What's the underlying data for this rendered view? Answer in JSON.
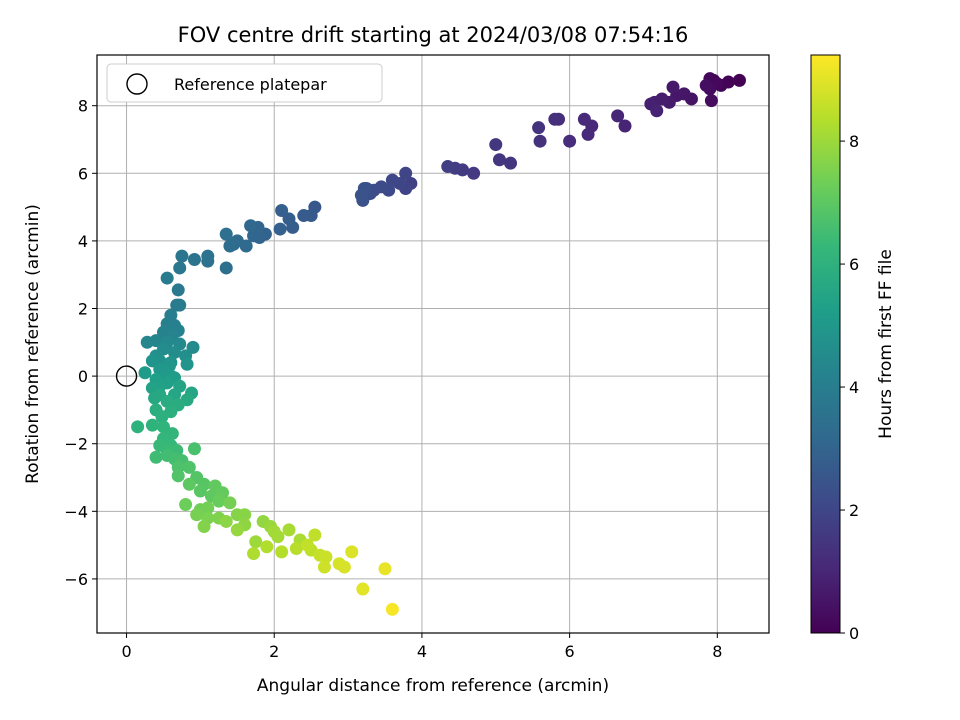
{
  "chart_data": {
    "type": "scatter",
    "title": "FOV centre drift starting at 2024/03/08 07:54:16",
    "xlabel": "Angular distance from reference (arcmin)",
    "ylabel": "Rotation from reference (arcmin)",
    "xlim": [
      -0.4,
      8.7
    ],
    "ylim": [
      -7.6,
      9.5
    ],
    "xticks": [
      0,
      2,
      4,
      6,
      8
    ],
    "yticks": [
      -6,
      -4,
      -2,
      0,
      2,
      4,
      6,
      8
    ],
    "grid": true,
    "legend": {
      "position": "top-left",
      "entries": [
        "Reference platepar"
      ]
    },
    "reference_point": {
      "x": 0,
      "y": 0,
      "label": "Reference platepar"
    },
    "colorbar": {
      "label": "Hours from first FF file",
      "range": [
        0,
        9.4
      ],
      "ticks": [
        0,
        2,
        4,
        6,
        8
      ],
      "colormap": "viridis",
      "colors": [
        "#440154",
        "#482878",
        "#3e4989",
        "#31688e",
        "#26828e",
        "#1f9e89",
        "#35b779",
        "#6ece58",
        "#b5de2b",
        "#fde725"
      ]
    },
    "series": [
      {
        "points": [
          [
            8.3,
            8.75,
            0.0
          ],
          [
            8.15,
            8.7,
            0.05
          ],
          [
            8.05,
            8.6,
            0.1
          ],
          [
            7.95,
            8.75,
            0.12
          ],
          [
            7.9,
            8.8,
            0.15
          ],
          [
            8.0,
            8.65,
            0.2
          ],
          [
            7.9,
            8.5,
            0.25
          ],
          [
            7.92,
            8.15,
            0.3
          ],
          [
            7.85,
            8.6,
            0.35
          ],
          [
            7.65,
            8.2,
            0.5
          ],
          [
            7.55,
            8.35,
            0.55
          ],
          [
            7.45,
            8.3,
            0.6
          ],
          [
            7.4,
            8.55,
            0.65
          ],
          [
            7.35,
            8.1,
            0.7
          ],
          [
            7.25,
            8.2,
            0.75
          ],
          [
            7.15,
            8.1,
            0.8
          ],
          [
            7.1,
            8.05,
            0.85
          ],
          [
            7.18,
            7.85,
            0.9
          ],
          [
            6.75,
            7.4,
            0.95
          ],
          [
            6.65,
            7.7,
            1.0
          ],
          [
            6.3,
            7.4,
            1.05
          ],
          [
            6.25,
            7.15,
            1.1
          ],
          [
            6.2,
            7.6,
            1.15
          ],
          [
            6.0,
            6.95,
            1.2
          ],
          [
            5.85,
            7.6,
            1.25
          ],
          [
            5.8,
            7.6,
            1.3
          ],
          [
            5.6,
            6.95,
            1.35
          ],
          [
            5.58,
            7.35,
            1.4
          ],
          [
            5.2,
            6.3,
            1.45
          ],
          [
            5.05,
            6.4,
            1.5
          ],
          [
            5.0,
            6.85,
            1.55
          ],
          [
            4.7,
            6.0,
            1.6
          ],
          [
            4.55,
            6.1,
            1.65
          ],
          [
            4.45,
            6.15,
            1.7
          ],
          [
            4.35,
            6.2,
            1.75
          ],
          [
            3.85,
            5.7,
            1.85
          ],
          [
            3.78,
            5.55,
            1.9
          ],
          [
            3.78,
            6.0,
            1.95
          ],
          [
            3.7,
            5.7,
            2.0
          ],
          [
            3.6,
            5.8,
            2.05
          ],
          [
            3.55,
            5.5,
            2.1
          ],
          [
            3.45,
            5.6,
            2.15
          ],
          [
            3.35,
            5.5,
            2.2
          ],
          [
            3.3,
            5.4,
            2.25
          ],
          [
            3.25,
            5.55,
            2.3
          ],
          [
            3.2,
            5.2,
            2.35
          ],
          [
            3.22,
            5.55,
            2.4
          ],
          [
            3.18,
            5.35,
            2.45
          ],
          [
            2.55,
            5.0,
            2.6
          ],
          [
            2.5,
            4.75,
            2.65
          ],
          [
            2.4,
            4.75,
            2.7
          ],
          [
            2.25,
            4.4,
            2.75
          ],
          [
            2.2,
            4.65,
            2.8
          ],
          [
            2.1,
            4.9,
            2.85
          ],
          [
            2.08,
            4.35,
            2.9
          ],
          [
            1.88,
            4.2,
            2.95
          ],
          [
            1.8,
            4.1,
            3.0
          ],
          [
            1.78,
            4.4,
            3.05
          ],
          [
            1.72,
            4.15,
            3.1
          ],
          [
            1.68,
            4.45,
            3.15
          ],
          [
            1.62,
            3.85,
            3.2
          ],
          [
            1.5,
            4.0,
            3.25
          ],
          [
            1.45,
            3.9,
            3.3
          ],
          [
            1.4,
            3.85,
            3.35
          ],
          [
            1.35,
            3.2,
            3.4
          ],
          [
            1.35,
            4.2,
            3.45
          ],
          [
            1.1,
            3.4,
            3.5
          ],
          [
            1.1,
            3.55,
            3.55
          ],
          [
            0.92,
            3.45,
            3.6
          ],
          [
            0.75,
            3.55,
            3.7
          ],
          [
            0.72,
            3.2,
            3.75
          ],
          [
            0.7,
            2.55,
            3.8
          ],
          [
            0.68,
            2.1,
            3.85
          ],
          [
            0.55,
            2.9,
            3.9
          ],
          [
            0.72,
            2.1,
            3.95
          ],
          [
            0.6,
            1.8,
            4.0
          ],
          [
            0.55,
            1.55,
            4.05
          ],
          [
            0.65,
            1.5,
            4.1
          ],
          [
            0.7,
            1.35,
            4.15
          ],
          [
            0.5,
            1.3,
            4.2
          ],
          [
            0.62,
            1.2,
            4.25
          ],
          [
            0.4,
            1.05,
            4.3
          ],
          [
            0.28,
            1.0,
            4.35
          ],
          [
            0.55,
            1.0,
            4.4
          ],
          [
            0.72,
            0.95,
            4.45
          ],
          [
            0.9,
            0.85,
            4.5
          ],
          [
            0.5,
            0.8,
            4.55
          ],
          [
            0.65,
            0.7,
            4.6
          ],
          [
            0.8,
            0.6,
            4.65
          ],
          [
            0.4,
            0.6,
            4.7
          ],
          [
            0.45,
            0.45,
            4.75
          ],
          [
            0.6,
            0.4,
            4.8
          ],
          [
            0.35,
            0.45,
            4.85
          ],
          [
            0.82,
            0.35,
            4.9
          ],
          [
            0.58,
            0.3,
            4.95
          ],
          [
            0.45,
            0.2,
            5.0
          ],
          [
            0.5,
            0.1,
            5.05
          ],
          [
            0.6,
            0.0,
            5.1
          ],
          [
            0.25,
            0.1,
            5.15
          ],
          [
            0.65,
            -0.05,
            5.2
          ],
          [
            0.4,
            -0.1,
            5.25
          ],
          [
            0.55,
            -0.2,
            5.3
          ],
          [
            0.45,
            -0.3,
            5.35
          ],
          [
            0.35,
            -0.35,
            5.4
          ],
          [
            0.72,
            -0.3,
            5.45
          ],
          [
            0.88,
            -0.5,
            5.5
          ],
          [
            0.65,
            -0.55,
            5.55
          ],
          [
            0.45,
            -0.55,
            5.6
          ],
          [
            0.38,
            -0.65,
            5.65
          ],
          [
            0.82,
            -0.7,
            5.7
          ],
          [
            0.55,
            -0.75,
            5.75
          ],
          [
            0.7,
            -0.85,
            5.8
          ],
          [
            0.4,
            -1.0,
            5.85
          ],
          [
            0.6,
            -1.05,
            5.9
          ],
          [
            0.48,
            -1.2,
            5.95
          ],
          [
            0.15,
            -1.5,
            6.0
          ],
          [
            0.35,
            -1.45,
            6.05
          ],
          [
            0.5,
            -1.5,
            6.1
          ],
          [
            0.62,
            -1.7,
            6.15
          ],
          [
            0.5,
            -1.85,
            6.2
          ],
          [
            0.6,
            -2.05,
            6.25
          ],
          [
            0.45,
            -2.05,
            6.3
          ],
          [
            0.55,
            -2.2,
            6.35
          ],
          [
            0.68,
            -2.2,
            6.4
          ],
          [
            0.4,
            -2.4,
            6.45
          ],
          [
            0.55,
            -2.35,
            6.5
          ],
          [
            0.65,
            -2.45,
            6.55
          ],
          [
            0.75,
            -2.5,
            6.6
          ],
          [
            0.92,
            -2.15,
            6.65
          ],
          [
            0.7,
            -2.7,
            6.7
          ],
          [
            0.85,
            -2.7,
            6.75
          ],
          [
            0.7,
            -2.95,
            6.8
          ],
          [
            0.95,
            -3.0,
            6.85
          ],
          [
            1.05,
            -3.2,
            6.9
          ],
          [
            1.0,
            -3.4,
            6.95
          ],
          [
            0.85,
            -3.2,
            7.0
          ],
          [
            1.15,
            -3.55,
            7.05
          ],
          [
            1.2,
            -3.25,
            7.1
          ],
          [
            1.3,
            -3.45,
            7.15
          ],
          [
            1.25,
            -3.7,
            7.2
          ],
          [
            0.8,
            -3.8,
            7.25
          ],
          [
            1.0,
            -3.95,
            7.3
          ],
          [
            1.1,
            -3.9,
            7.35
          ],
          [
            1.4,
            -3.75,
            7.4
          ],
          [
            0.95,
            -4.1,
            7.45
          ],
          [
            1.1,
            -4.2,
            7.5
          ],
          [
            1.25,
            -4.2,
            7.55
          ],
          [
            1.05,
            -4.45,
            7.6
          ],
          [
            1.5,
            -4.1,
            7.65
          ],
          [
            1.6,
            -4.1,
            7.7
          ],
          [
            1.35,
            -4.3,
            7.75
          ],
          [
            1.6,
            -4.4,
            7.8
          ],
          [
            1.85,
            -4.3,
            7.85
          ],
          [
            1.5,
            -4.55,
            7.9
          ],
          [
            1.95,
            -4.45,
            7.95
          ],
          [
            1.75,
            -4.9,
            8.0
          ],
          [
            2.0,
            -4.6,
            8.05
          ],
          [
            2.05,
            -4.75,
            8.1
          ],
          [
            2.2,
            -4.55,
            8.15
          ],
          [
            2.35,
            -4.85,
            8.2
          ],
          [
            1.72,
            -5.25,
            8.25
          ],
          [
            1.9,
            -5.05,
            8.3
          ],
          [
            2.1,
            -5.2,
            8.35
          ],
          [
            2.3,
            -5.1,
            8.4
          ],
          [
            2.5,
            -5.15,
            8.45
          ],
          [
            2.55,
            -4.7,
            8.5
          ],
          [
            2.45,
            -5.0,
            8.55
          ],
          [
            2.62,
            -5.3,
            8.6
          ],
          [
            2.7,
            -5.35,
            8.65
          ],
          [
            2.68,
            -5.65,
            8.7
          ],
          [
            2.88,
            -5.55,
            8.8
          ],
          [
            2.95,
            -5.65,
            8.85
          ],
          [
            3.05,
            -5.2,
            8.9
          ],
          [
            3.2,
            -6.3,
            9.0
          ],
          [
            3.5,
            -5.7,
            9.1
          ],
          [
            3.6,
            -6.9,
            9.3
          ]
        ]
      }
    ]
  }
}
